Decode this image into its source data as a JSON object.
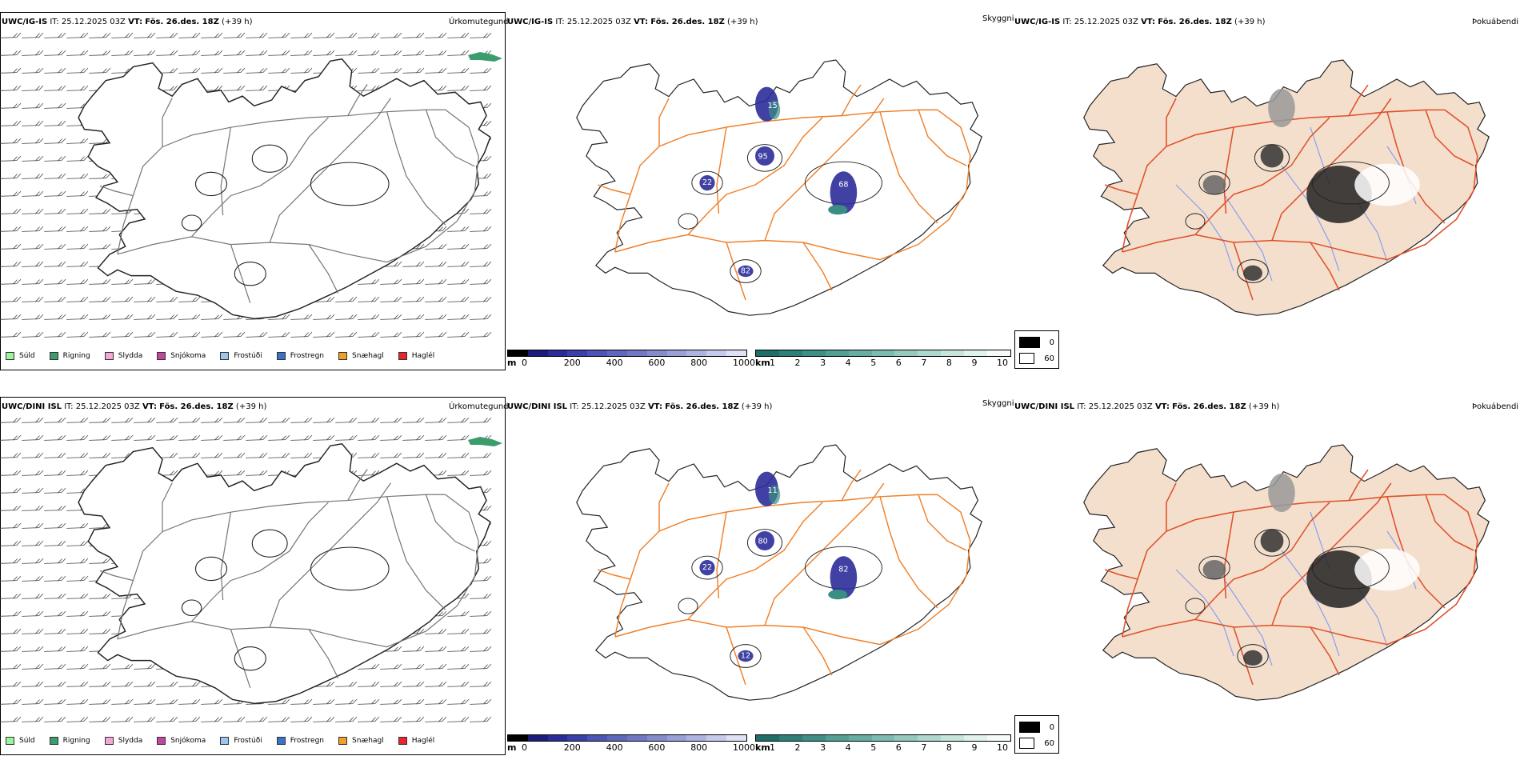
{
  "colors": {
    "road_orange": "#f07f28",
    "road_red": "#e0502a",
    "land_beige": "#f4dfcd",
    "river_blue": "#8aa0ee",
    "snow_blue": "#2c2c9a",
    "vis_teal": "#3a8f83"
  },
  "rows": [
    {
      "model": "UWC/IG-IS",
      "it_label": "IT:",
      "it_value": "25.12.2025 03Z",
      "vt_label": "VT:",
      "vt_value": "Fös. 26.des. 18Z",
      "lead": "(+39 h)",
      "panel1_title": "Úrkomutegund",
      "panel2_title": "Skyggni",
      "panel3_title": "Þokuábendi",
      "labels": [
        "95",
        "68",
        "82",
        "15",
        "22"
      ]
    },
    {
      "model": "UWC/DINI ISL",
      "it_label": "IT:",
      "it_value": "25.12.2025 03Z",
      "vt_label": "VT:",
      "vt_value": "Fös. 26.des. 18Z",
      "lead": "(+39 h)",
      "panel1_title": "Úrkomutegund",
      "panel2_title": "Skyggni",
      "panel3_title": "Þokuábendi",
      "labels": [
        "80",
        "82",
        "12",
        "11",
        "22"
      ]
    }
  ],
  "precip_legend": [
    {
      "label": "Súld",
      "color": "#9cf59c"
    },
    {
      "label": "Rigning",
      "color": "#3d9c6c"
    },
    {
      "label": "Slydda",
      "color": "#f4a8d8"
    },
    {
      "label": "Snjókoma",
      "color": "#c046a0"
    },
    {
      "label": "Frostúði",
      "color": "#9cc6f0"
    },
    {
      "label": "Frostregn",
      "color": "#3a72c8"
    },
    {
      "label": "Snæhagl",
      "color": "#f0a028"
    },
    {
      "label": "Haglél",
      "color": "#e8242c"
    }
  ],
  "snow_scale": {
    "unit": "m",
    "ticks": [
      "0",
      "200",
      "400",
      "600",
      "800",
      "1000"
    ],
    "colors": [
      "#000000",
      "#1c1c7c",
      "#2a2c9c",
      "#3a40aa",
      "#4c54b4",
      "#5e68bc",
      "#7078c4",
      "#848cce",
      "#98a0d8",
      "#aeb4e2",
      "#c6cbec",
      "#dfe2f5"
    ]
  },
  "vis_scale": {
    "unit": "km",
    "ticks": [
      "1",
      "2",
      "3",
      "4",
      "5",
      "6",
      "7",
      "8",
      "9",
      "10"
    ],
    "colors": [
      "#1f6e6a",
      "#2e7f78",
      "#3e8f86",
      "#52a094",
      "#66ada2",
      "#7cbcb0",
      "#94cabe",
      "#acd8cd",
      "#c6e5dc",
      "#e0f2ec",
      "#f6fbf9"
    ]
  },
  "fog_legend": [
    {
      "value": "0",
      "color": "#000000"
    },
    {
      "value": "60",
      "color": "#ffffff"
    }
  ]
}
